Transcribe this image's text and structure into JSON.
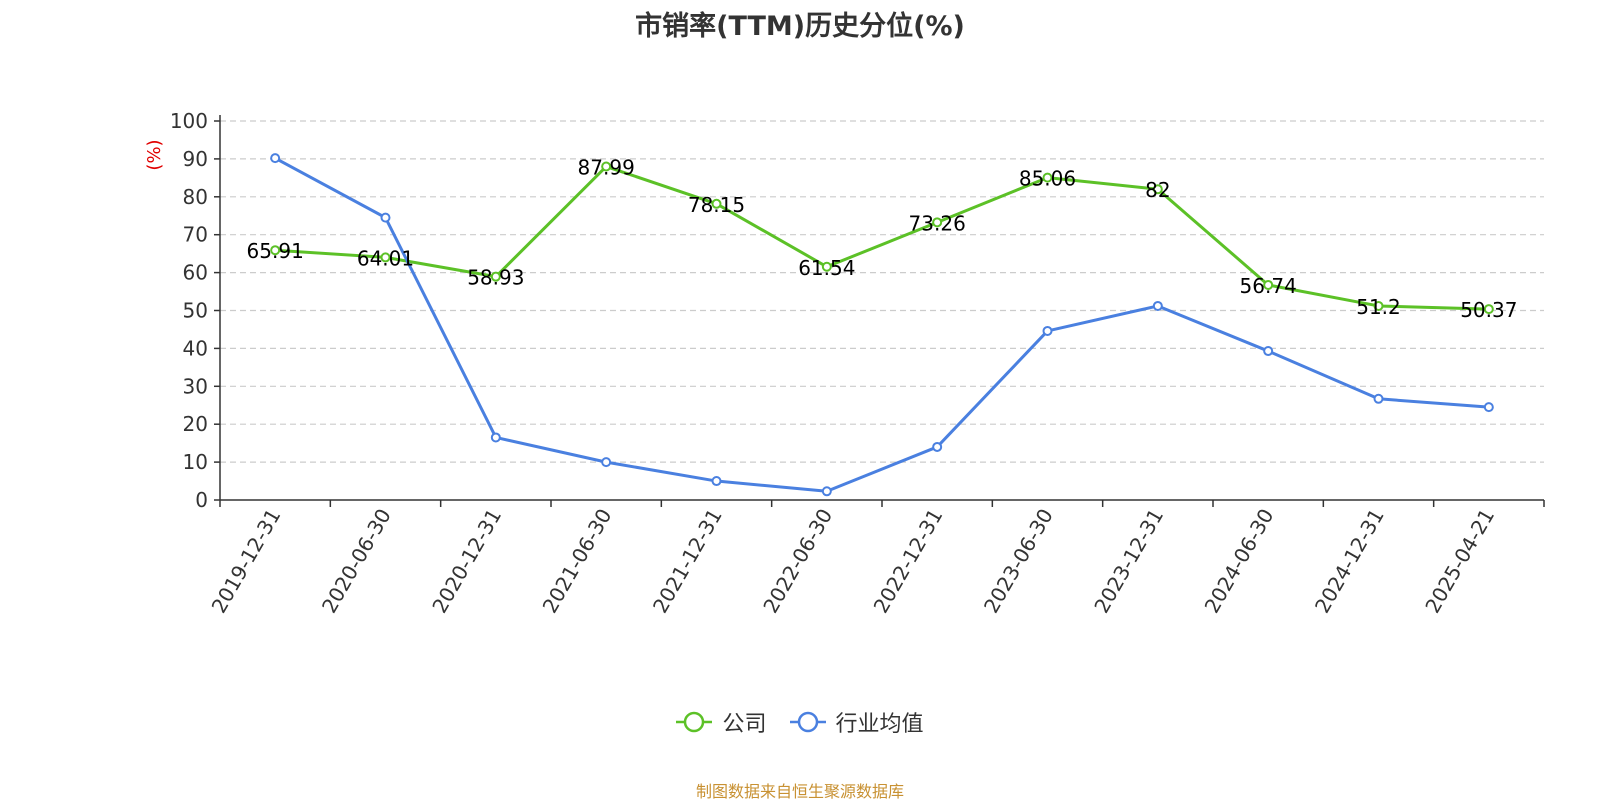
{
  "title": "市销率(TTM)历史分位(%)",
  "footer": "制图数据来自恒生聚源数据库",
  "legend": [
    {
      "label": "公司",
      "color": "#5cc127"
    },
    {
      "label": "行业均值",
      "color": "#4a80e0"
    }
  ],
  "chart_data": {
    "type": "line",
    "ylabel": "(%)",
    "ylabel_color": "#e00000",
    "ylim": [
      0,
      100
    ],
    "yticks": [
      0,
      10,
      20,
      30,
      40,
      50,
      60,
      70,
      80,
      90,
      100
    ],
    "grid": true,
    "legend_position": "bottom",
    "categories": [
      "2019-12-31",
      "2020-06-30",
      "2020-12-31",
      "2021-06-30",
      "2021-12-31",
      "2022-06-30",
      "2022-12-31",
      "2023-06-30",
      "2023-12-31",
      "2024-06-30",
      "2024-12-31",
      "2025-04-21"
    ],
    "series": [
      {
        "name": "公司",
        "color": "#5cc127",
        "show_labels": true,
        "values": [
          65.91,
          64.01,
          58.93,
          87.99,
          78.15,
          61.54,
          73.26,
          85.06,
          82,
          56.74,
          51.2,
          50.37
        ],
        "labels": [
          "65.91",
          "64.01",
          "58.93",
          "87.99",
          "78.15",
          "61.54",
          "73.26",
          "85.06",
          "82",
          "56.74",
          "51.2",
          "50.37"
        ]
      },
      {
        "name": "行业均值",
        "color": "#4a80e0",
        "show_labels": false,
        "values": [
          90.2,
          74.5,
          16.5,
          10.0,
          5.0,
          2.3,
          14.0,
          44.6,
          51.2,
          39.3,
          26.7,
          24.5
        ]
      }
    ]
  }
}
